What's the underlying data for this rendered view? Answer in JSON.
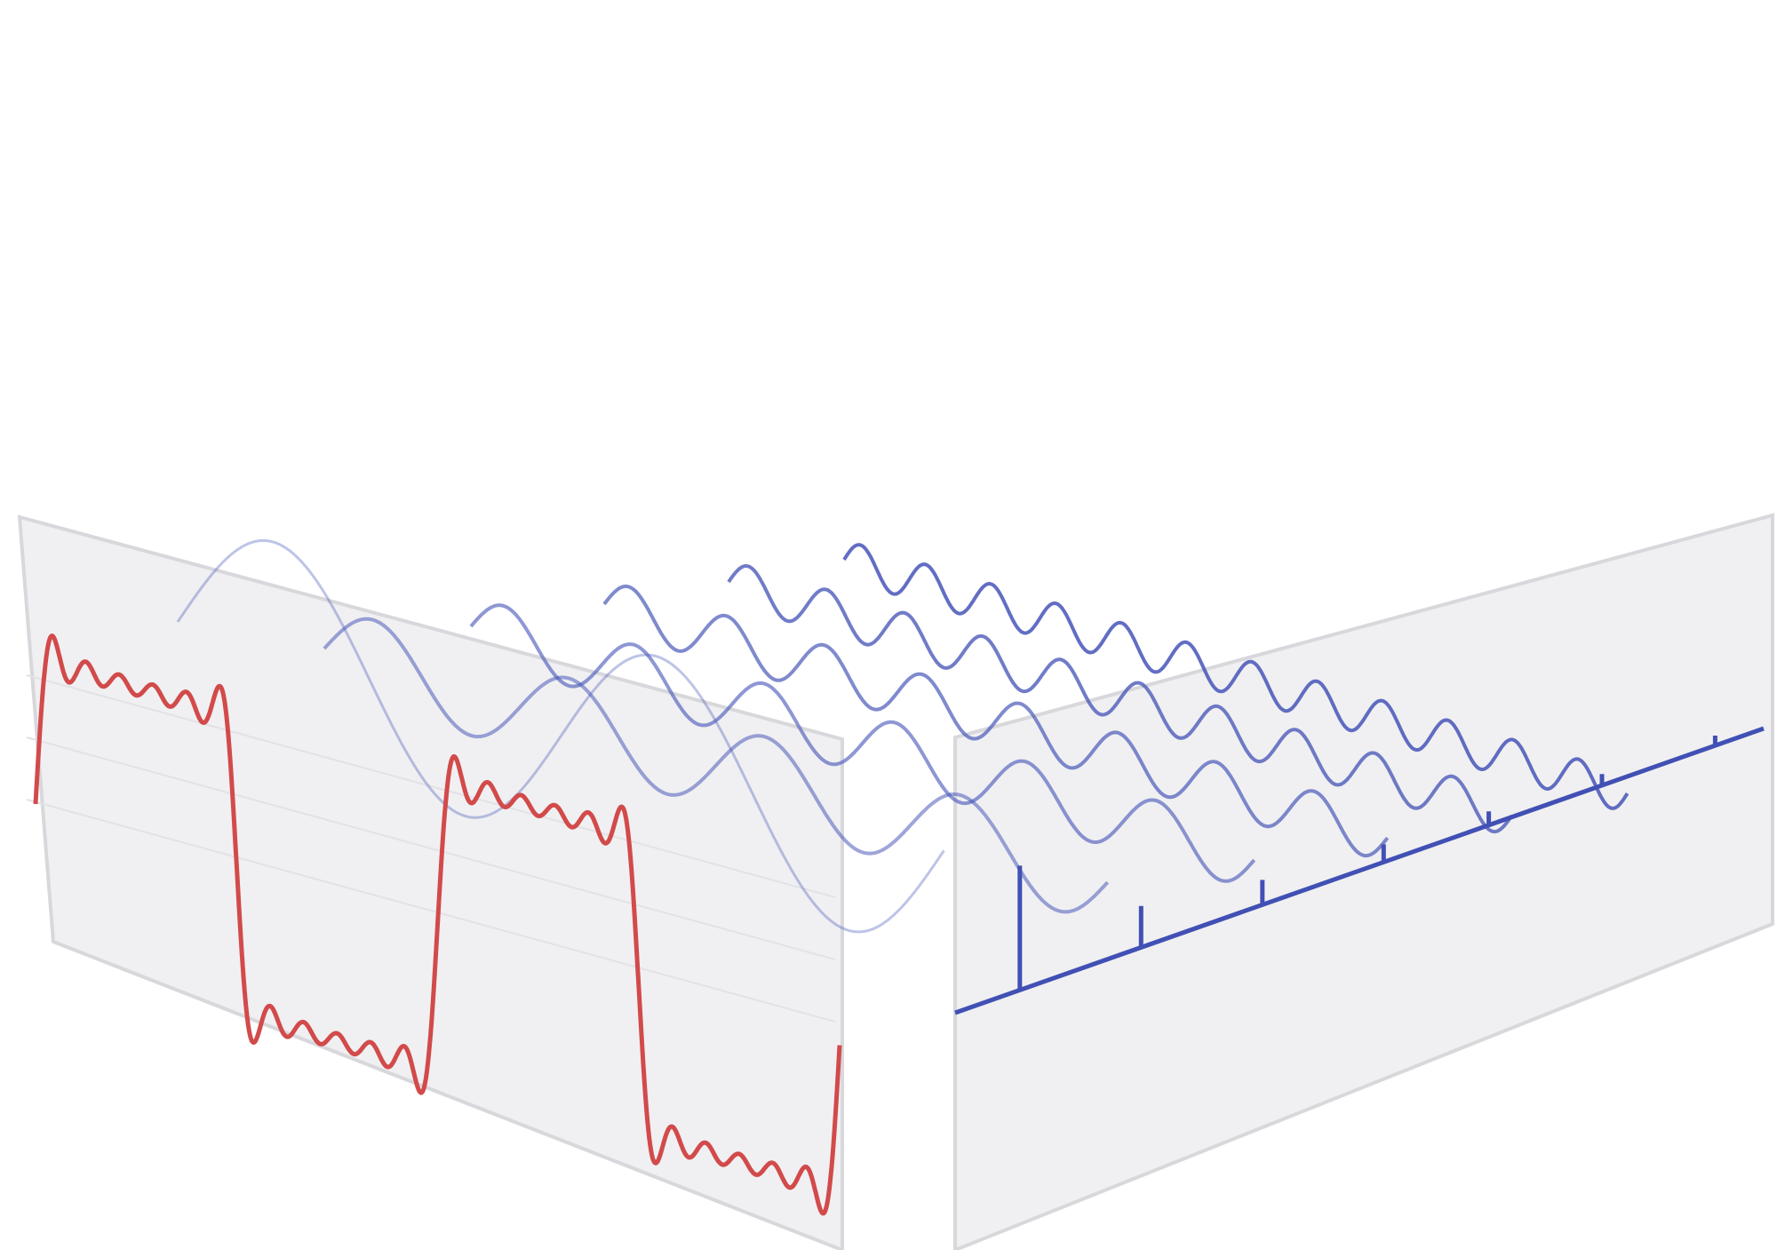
{
  "diagram": {
    "kind": "fourier-series-time-frequency-illustration",
    "colors": {
      "background": "#ffffff",
      "panel_fill": "#f0f0f2",
      "panel_edge": "#d8d8dc",
      "square_wave": "#d24a4a",
      "harmonic": "#4655b8",
      "spectrum": "#4150b4"
    },
    "square_wave": {
      "periods_shown": 2,
      "harmonic_terms": 6
    },
    "harmonics": [
      {
        "order": 1,
        "relative_amplitude": 1.0
      },
      {
        "order": 3,
        "relative_amplitude": 0.333
      },
      {
        "order": 5,
        "relative_amplitude": 0.2
      },
      {
        "order": 7,
        "relative_amplitude": 0.143
      },
      {
        "order": 9,
        "relative_amplitude": 0.111
      },
      {
        "order": 11,
        "relative_amplitude": 0.091
      }
    ]
  }
}
